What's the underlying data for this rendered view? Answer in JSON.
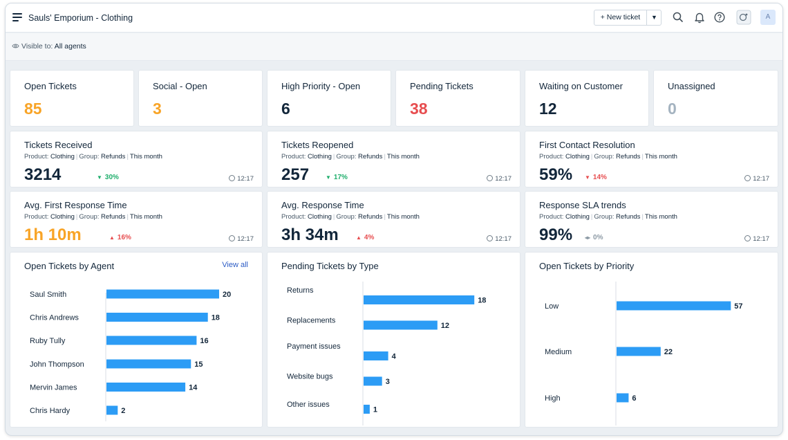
{
  "header": {
    "title": "Sauls' Emporium - Clothing",
    "new_ticket_label": "+ New ticket",
    "avatar_initial": "A"
  },
  "visibility": {
    "label": "Visible to:",
    "value": "All agents"
  },
  "stats": [
    {
      "title": "Open Tickets",
      "value": "85",
      "color": "#f8a427"
    },
    {
      "title": "Social - Open",
      "value": "3",
      "color": "#f8a427"
    },
    {
      "title": "High Priority - Open",
      "value": "6",
      "color": "#12263a"
    },
    {
      "title": "Pending Tickets",
      "value": "38",
      "color": "#e74d4f"
    },
    {
      "title": "Waiting on Customer",
      "value": "12",
      "color": "#12263a"
    },
    {
      "title": "Unassigned",
      "value": "0",
      "color": "#a4b3c0"
    }
  ],
  "metrics": [
    {
      "title": "Tickets Received",
      "product_label": "Product:",
      "product": "Clothing",
      "group_label": "Group:",
      "group": "Refunds",
      "period": "This month",
      "value": "3214",
      "change": "30%",
      "direction": "down",
      "time": "12:17",
      "value_color": "#12263a",
      "change_color": "#1fae6c"
    },
    {
      "title": "Tickets Reopened",
      "product_label": "Product:",
      "product": "Clothing",
      "group_label": "Group:",
      "group": "Refunds",
      "period": "This month",
      "value": "257",
      "change": "17%",
      "direction": "down",
      "time": "12:17",
      "value_color": "#12263a",
      "change_color": "#1fae6c"
    },
    {
      "title": "First Contact Resolution",
      "product_label": "Product:",
      "product": "Clothing",
      "group_label": "Group:",
      "group": "Refunds",
      "period": "This month",
      "value": "59%",
      "change": "14%",
      "direction": "down",
      "time": "12:17",
      "value_color": "#12263a",
      "change_color": "#e74d4f"
    },
    {
      "title": "Avg. First Response Time",
      "product_label": "Product:",
      "product": "Clothing",
      "group_label": "Group:",
      "group": "Refunds",
      "period": "This month",
      "value": "1h 10m",
      "change": "16%",
      "direction": "up",
      "time": "12:17",
      "value_color": "#f8a427",
      "change_color": "#e74d4f"
    },
    {
      "title": "Avg. Response Time",
      "product_label": "Product:",
      "product": "Clothing",
      "group_label": "Group:",
      "group": "Refunds",
      "period": "This month",
      "value": "3h 34m",
      "change": "4%",
      "direction": "up",
      "time": "12:17",
      "value_color": "#12263a",
      "change_color": "#e74d4f"
    },
    {
      "title": "Response SLA trends",
      "product_label": "Product:",
      "product": "Clothing",
      "group_label": "Group:",
      "group": "Refunds",
      "period": "This month",
      "value": "99%",
      "change": "0%",
      "direction": "flat",
      "time": "12:17",
      "value_color": "#12263a",
      "change_color": "#8d9aa5"
    }
  ],
  "chart_data": [
    {
      "type": "bar",
      "orientation": "horizontal",
      "title": "Open Tickets by Agent",
      "link": "View all",
      "categories": [
        "Saul Smith",
        "Chris Andrews",
        "Ruby Tully",
        "John Thompson",
        "Mervin James",
        "Chris Hardy"
      ],
      "values": [
        20,
        18,
        16,
        15,
        14,
        2
      ],
      "bar_color": "#2c9cf5"
    },
    {
      "type": "bar",
      "orientation": "horizontal",
      "title": "Pending Tickets by Type",
      "categories": [
        "Returns",
        "Replacements",
        "Payment issues",
        "Website bugs",
        "Other issues"
      ],
      "values": [
        18,
        12,
        4,
        3,
        1
      ],
      "bar_color": "#2c9cf5"
    },
    {
      "type": "bar",
      "orientation": "horizontal",
      "title": "Open Tickets by Priority",
      "categories": [
        "Low",
        "Medium",
        "High"
      ],
      "values": [
        57,
        22,
        6
      ],
      "bar_color": "#2c9cf5"
    }
  ]
}
